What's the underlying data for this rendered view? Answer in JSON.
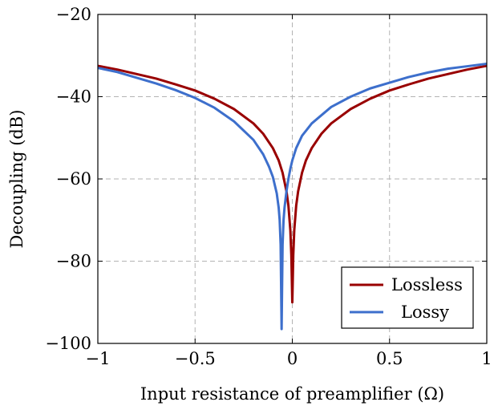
{
  "chart_data": {
    "type": "line",
    "title": "",
    "xlabel": "Input resistance of preamplifier (Ω)",
    "ylabel": "Decoupling (dB)",
    "xlim": [
      -1,
      1
    ],
    "ylim": [
      -100,
      -20
    ],
    "grid": true,
    "legend_position": "bottom-right",
    "x_ticks": [
      -1,
      -0.5,
      0,
      0.5,
      1
    ],
    "x_tick_labels": [
      "−1",
      "−0.5",
      "0",
      "0.5",
      "1"
    ],
    "y_ticks": [
      -100,
      -80,
      -60,
      -40,
      -20
    ],
    "y_tick_labels": [
      "−100",
      "−80",
      "−60",
      "−40",
      "−20"
    ],
    "series": [
      {
        "name": "Lossless",
        "color": "#990000",
        "x": [
          -1.0,
          -0.9,
          -0.8,
          -0.7,
          -0.6,
          -0.5,
          -0.4,
          -0.3,
          -0.2,
          -0.15,
          -0.1,
          -0.07,
          -0.05,
          -0.03,
          -0.02,
          -0.01,
          -0.005,
          0.0,
          0.005,
          0.01,
          0.02,
          0.03,
          0.05,
          0.07,
          0.1,
          0.15,
          0.2,
          0.3,
          0.4,
          0.5,
          0.6,
          0.7,
          0.8,
          0.9,
          1.0
        ],
        "y": [
          -32.5,
          -33.4,
          -34.5,
          -35.6,
          -37.0,
          -38.5,
          -40.5,
          -43.0,
          -46.5,
          -49.0,
          -52.5,
          -55.5,
          -58.5,
          -63.0,
          -66.5,
          -72.5,
          -78.5,
          -90.0,
          -78.5,
          -72.5,
          -66.5,
          -63.0,
          -58.5,
          -55.5,
          -52.5,
          -49.0,
          -46.5,
          -43.0,
          -40.5,
          -38.5,
          -37.0,
          -35.6,
          -34.5,
          -33.4,
          -32.5
        ]
      },
      {
        "name": "Lossy",
        "color": "#3d6fcc",
        "x": [
          -1.0,
          -0.9,
          -0.8,
          -0.7,
          -0.6,
          -0.5,
          -0.4,
          -0.3,
          -0.2,
          -0.15,
          -0.12,
          -0.1,
          -0.08,
          -0.07,
          -0.065,
          -0.06,
          -0.058,
          -0.055,
          -0.052,
          -0.05,
          -0.045,
          -0.04,
          -0.035,
          -0.03,
          -0.02,
          -0.01,
          0.0,
          0.02,
          0.05,
          0.1,
          0.2,
          0.3,
          0.4,
          0.5,
          0.6,
          0.7,
          0.8,
          0.9,
          1.0
        ],
        "y": [
          -33.0,
          -34.0,
          -35.4,
          -36.8,
          -38.4,
          -40.3,
          -42.7,
          -46.0,
          -50.5,
          -54.0,
          -57.0,
          -59.5,
          -63.5,
          -67.0,
          -70.0,
          -76.0,
          -84.0,
          -96.5,
          -84.0,
          -76.0,
          -70.0,
          -67.0,
          -65.0,
          -63.0,
          -60.0,
          -57.5,
          -55.5,
          -52.5,
          -49.5,
          -46.5,
          -42.5,
          -40.0,
          -38.0,
          -36.6,
          -35.2,
          -34.1,
          -33.2,
          -32.6,
          -32.0
        ]
      }
    ]
  }
}
